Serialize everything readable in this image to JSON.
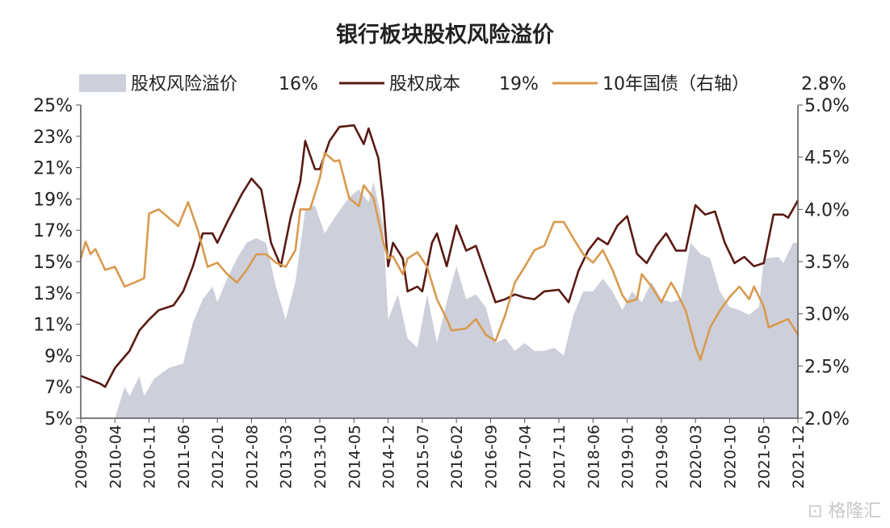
{
  "chart_data": {
    "type": "line",
    "title": "银行板块股权风险溢价",
    "x_tick_labels": [
      "2009-09",
      "2010-04",
      "2010-11",
      "2011-06",
      "2012-01",
      "2012-08",
      "2013-03",
      "2013-10",
      "2014-05",
      "2014-12",
      "2015-07",
      "2016-02",
      "2016-09",
      "2017-04",
      "2017-11",
      "2018-06",
      "2019-01",
      "2019-08",
      "2020-03",
      "2020-10",
      "2021-05",
      "2021-12"
    ],
    "y_left": {
      "ylim": [
        5,
        25
      ],
      "ticks": [
        "5%",
        "7%",
        "9%",
        "11%",
        "13%",
        "15%",
        "17%",
        "19%",
        "21%",
        "23%",
        "25%"
      ]
    },
    "y_right": {
      "ylim": [
        2.0,
        5.0
      ],
      "ticks": [
        "2.0%",
        "2.5%",
        "3.0%",
        "3.5%",
        "4.0%",
        "4.5%",
        "5.0%"
      ]
    },
    "grid": false,
    "legend_position": "top",
    "series": [
      {
        "name": "股权风险溢价",
        "latest_label": "16%",
        "type": "area",
        "axis": "left",
        "color": "#cdd0db",
        "points": [
          [
            "2009-09",
            5.0
          ],
          [
            "2010-03",
            5.0
          ],
          [
            "2010-04",
            5.0
          ],
          [
            "2010-06",
            7.0
          ],
          [
            "2010-07",
            6.4
          ],
          [
            "2010-09",
            7.7
          ],
          [
            "2010-10",
            6.4
          ],
          [
            "2010-12",
            7.5
          ],
          [
            "2011-03",
            8.2
          ],
          [
            "2011-06",
            8.5
          ],
          [
            "2011-08",
            11.1
          ],
          [
            "2011-10",
            12.6
          ],
          [
            "2011-12",
            13.4
          ],
          [
            "2012-01",
            12.4
          ],
          [
            "2012-03",
            13.9
          ],
          [
            "2012-05",
            15.2
          ],
          [
            "2012-07",
            16.2
          ],
          [
            "2012-09",
            16.5
          ],
          [
            "2012-11",
            16.2
          ],
          [
            "2013-01",
            13.4
          ],
          [
            "2013-03",
            11.3
          ],
          [
            "2013-05",
            13.7
          ],
          [
            "2013-07",
            18.3
          ],
          [
            "2013-09",
            18.6
          ],
          [
            "2013-11",
            16.8
          ],
          [
            "2014-01",
            17.8
          ],
          [
            "2014-04",
            19.1
          ],
          [
            "2014-06",
            19.6
          ],
          [
            "2014-08",
            18.8
          ],
          [
            "2014-09",
            20.1
          ],
          [
            "2014-11",
            17.3
          ],
          [
            "2014-12",
            11.3
          ],
          [
            "2015-02",
            12.9
          ],
          [
            "2015-04",
            10.1
          ],
          [
            "2015-06",
            9.5
          ],
          [
            "2015-08",
            12.9
          ],
          [
            "2015-10",
            9.8
          ],
          [
            "2015-12",
            12.4
          ],
          [
            "2016-02",
            14.7
          ],
          [
            "2016-04",
            12.6
          ],
          [
            "2016-06",
            12.9
          ],
          [
            "2016-08",
            12.1
          ],
          [
            "2016-10",
            9.8
          ],
          [
            "2016-12",
            10.1
          ],
          [
            "2017-02",
            9.3
          ],
          [
            "2017-04",
            9.8
          ],
          [
            "2017-06",
            9.3
          ],
          [
            "2017-08",
            9.3
          ],
          [
            "2017-10",
            9.5
          ],
          [
            "2017-12",
            9.0
          ],
          [
            "2018-02",
            11.6
          ],
          [
            "2018-04",
            13.1
          ],
          [
            "2018-06",
            13.1
          ],
          [
            "2018-08",
            13.9
          ],
          [
            "2018-10",
            13.1
          ],
          [
            "2018-12",
            11.9
          ],
          [
            "2019-02",
            13.1
          ],
          [
            "2019-04",
            12.4
          ],
          [
            "2019-06",
            13.7
          ],
          [
            "2019-08",
            12.6
          ],
          [
            "2019-10",
            12.4
          ],
          [
            "2019-12",
            12.6
          ],
          [
            "2020-02",
            16.2
          ],
          [
            "2020-04",
            15.5
          ],
          [
            "2020-06",
            15.2
          ],
          [
            "2020-08",
            13.1
          ],
          [
            "2020-10",
            12.1
          ],
          [
            "2020-12",
            11.9
          ],
          [
            "2021-02",
            11.6
          ],
          [
            "2021-04",
            12.1
          ],
          [
            "2021-05",
            15.2
          ],
          [
            "2021-08",
            15.3
          ],
          [
            "2021-09",
            14.9
          ],
          [
            "2021-11",
            16.2
          ],
          [
            "2021-12",
            16.2
          ]
        ]
      },
      {
        "name": "股权成本",
        "latest_label": "19%",
        "type": "line",
        "axis": "left",
        "color": "#5a1a14",
        "points": [
          [
            "2009-09",
            7.7
          ],
          [
            "2010-01",
            7.2
          ],
          [
            "2010-02",
            7.0
          ],
          [
            "2010-04",
            8.2
          ],
          [
            "2010-07",
            9.3
          ],
          [
            "2010-09",
            10.6
          ],
          [
            "2010-11",
            11.3
          ],
          [
            "2011-01",
            11.9
          ],
          [
            "2011-04",
            12.2
          ],
          [
            "2011-06",
            13.1
          ],
          [
            "2011-08",
            14.7
          ],
          [
            "2011-10",
            16.8
          ],
          [
            "2011-12",
            16.8
          ],
          [
            "2012-01",
            16.2
          ],
          [
            "2012-03",
            17.5
          ],
          [
            "2012-06",
            19.3
          ],
          [
            "2012-08",
            20.3
          ],
          [
            "2012-10",
            19.6
          ],
          [
            "2012-12",
            16.2
          ],
          [
            "2013-02",
            14.7
          ],
          [
            "2013-04",
            17.8
          ],
          [
            "2013-06",
            20.1
          ],
          [
            "2013-07",
            22.7
          ],
          [
            "2013-09",
            20.9
          ],
          [
            "2013-10",
            20.9
          ],
          [
            "2013-12",
            22.7
          ],
          [
            "2014-02",
            23.6
          ],
          [
            "2014-05",
            23.7
          ],
          [
            "2014-07",
            22.5
          ],
          [
            "2014-08",
            23.5
          ],
          [
            "2014-10",
            21.6
          ],
          [
            "2014-11",
            18.8
          ],
          [
            "2014-12",
            14.7
          ],
          [
            "2015-01",
            16.2
          ],
          [
            "2015-03",
            15.2
          ],
          [
            "2015-04",
            13.1
          ],
          [
            "2015-06",
            13.4
          ],
          [
            "2015-07",
            13.1
          ],
          [
            "2015-09",
            16.2
          ],
          [
            "2015-10",
            16.8
          ],
          [
            "2015-12",
            14.7
          ],
          [
            "2016-02",
            17.3
          ],
          [
            "2016-04",
            15.7
          ],
          [
            "2016-06",
            16.0
          ],
          [
            "2016-08",
            14.2
          ],
          [
            "2016-10",
            12.4
          ],
          [
            "2016-12",
            12.6
          ],
          [
            "2017-02",
            12.9
          ],
          [
            "2017-04",
            12.7
          ],
          [
            "2017-06",
            12.6
          ],
          [
            "2017-08",
            13.1
          ],
          [
            "2017-11",
            13.2
          ],
          [
            "2018-01",
            12.4
          ],
          [
            "2018-03",
            14.4
          ],
          [
            "2018-05",
            15.7
          ],
          [
            "2018-07",
            16.5
          ],
          [
            "2018-09",
            16.1
          ],
          [
            "2018-11",
            17.3
          ],
          [
            "2019-01",
            17.9
          ],
          [
            "2019-03",
            15.5
          ],
          [
            "2019-05",
            14.9
          ],
          [
            "2019-07",
            16.0
          ],
          [
            "2019-09",
            16.8
          ],
          [
            "2019-11",
            15.7
          ],
          [
            "2020-01",
            15.7
          ],
          [
            "2020-03",
            18.6
          ],
          [
            "2020-05",
            18.0
          ],
          [
            "2020-07",
            18.2
          ],
          [
            "2020-09",
            16.2
          ],
          [
            "2020-11",
            14.9
          ],
          [
            "2021-01",
            15.3
          ],
          [
            "2021-03",
            14.7
          ],
          [
            "2021-05",
            14.9
          ],
          [
            "2021-07",
            18.0
          ],
          [
            "2021-09",
            18.0
          ],
          [
            "2021-10",
            17.8
          ],
          [
            "2021-12",
            18.9
          ]
        ]
      },
      {
        "name": "10年国债（右轴）",
        "latest_label": "2.8%",
        "type": "line",
        "axis": "right",
        "color": "#d99a4e",
        "points": [
          [
            "2009-09",
            3.53
          ],
          [
            "2009-10",
            3.69
          ],
          [
            "2009-11",
            3.57
          ],
          [
            "2009-12",
            3.62
          ],
          [
            "2010-02",
            3.42
          ],
          [
            "2010-04",
            3.45
          ],
          [
            "2010-06",
            3.26
          ],
          [
            "2010-08",
            3.3
          ],
          [
            "2010-10",
            3.34
          ],
          [
            "2010-11",
            3.96
          ],
          [
            "2011-01",
            4.0
          ],
          [
            "2011-03",
            3.92
          ],
          [
            "2011-05",
            3.84
          ],
          [
            "2011-07",
            4.07
          ],
          [
            "2011-09",
            3.8
          ],
          [
            "2011-11",
            3.45
          ],
          [
            "2012-01",
            3.49
          ],
          [
            "2012-03",
            3.38
          ],
          [
            "2012-05",
            3.3
          ],
          [
            "2012-07",
            3.42
          ],
          [
            "2012-09",
            3.57
          ],
          [
            "2012-11",
            3.57
          ],
          [
            "2013-01",
            3.49
          ],
          [
            "2013-03",
            3.45
          ],
          [
            "2013-05",
            3.61
          ],
          [
            "2013-06",
            4.0
          ],
          [
            "2013-08",
            4.0
          ],
          [
            "2013-10",
            4.3
          ],
          [
            "2013-11",
            4.54
          ],
          [
            "2014-01",
            4.46
          ],
          [
            "2014-02",
            4.47
          ],
          [
            "2014-04",
            4.11
          ],
          [
            "2014-06",
            4.03
          ],
          [
            "2014-07",
            4.23
          ],
          [
            "2014-09",
            4.11
          ],
          [
            "2014-11",
            3.69
          ],
          [
            "2014-12",
            3.53
          ],
          [
            "2015-01",
            3.55
          ],
          [
            "2015-03",
            3.38
          ],
          [
            "2015-04",
            3.53
          ],
          [
            "2015-06",
            3.59
          ],
          [
            "2015-08",
            3.45
          ],
          [
            "2015-10",
            3.14
          ],
          [
            "2015-12",
            2.95
          ],
          [
            "2016-01",
            2.84
          ],
          [
            "2016-04",
            2.86
          ],
          [
            "2016-06",
            2.95
          ],
          [
            "2016-08",
            2.8
          ],
          [
            "2016-10",
            2.74
          ],
          [
            "2016-12",
            2.99
          ],
          [
            "2017-02",
            3.3
          ],
          [
            "2017-04",
            3.45
          ],
          [
            "2017-06",
            3.61
          ],
          [
            "2017-08",
            3.65
          ],
          [
            "2017-10",
            3.88
          ],
          [
            "2017-12",
            3.88
          ],
          [
            "2018-02",
            3.72
          ],
          [
            "2018-04",
            3.57
          ],
          [
            "2018-06",
            3.49
          ],
          [
            "2018-08",
            3.61
          ],
          [
            "2018-10",
            3.42
          ],
          [
            "2018-12",
            3.18
          ],
          [
            "2019-01",
            3.11
          ],
          [
            "2019-03",
            3.14
          ],
          [
            "2019-04",
            3.38
          ],
          [
            "2019-06",
            3.26
          ],
          [
            "2019-08",
            3.11
          ],
          [
            "2019-10",
            3.3
          ],
          [
            "2019-11",
            3.22
          ],
          [
            "2020-01",
            3.03
          ],
          [
            "2020-03",
            2.68
          ],
          [
            "2020-04",
            2.56
          ],
          [
            "2020-06",
            2.87
          ],
          [
            "2020-08",
            3.03
          ],
          [
            "2020-10",
            3.16
          ],
          [
            "2020-12",
            3.26
          ],
          [
            "2021-02",
            3.14
          ],
          [
            "2021-03",
            3.26
          ],
          [
            "2021-05",
            3.07
          ],
          [
            "2021-06",
            2.87
          ],
          [
            "2021-08",
            2.91
          ],
          [
            "2021-10",
            2.95
          ],
          [
            "2021-12",
            2.8
          ]
        ]
      }
    ]
  },
  "watermark": "格隆汇"
}
